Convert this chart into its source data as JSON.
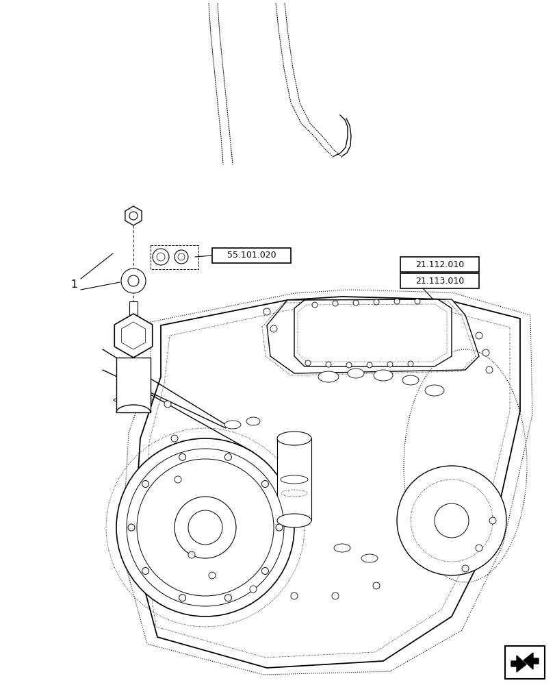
{
  "background_color": "#ffffff",
  "line_color": "#000000",
  "label_1": "1",
  "label_55": "55.101.020",
  "label_21a": "21.112.010",
  "label_21b": "21.113.010",
  "fig_width": 8.12,
  "fig_height": 10.0,
  "dpi": 100
}
